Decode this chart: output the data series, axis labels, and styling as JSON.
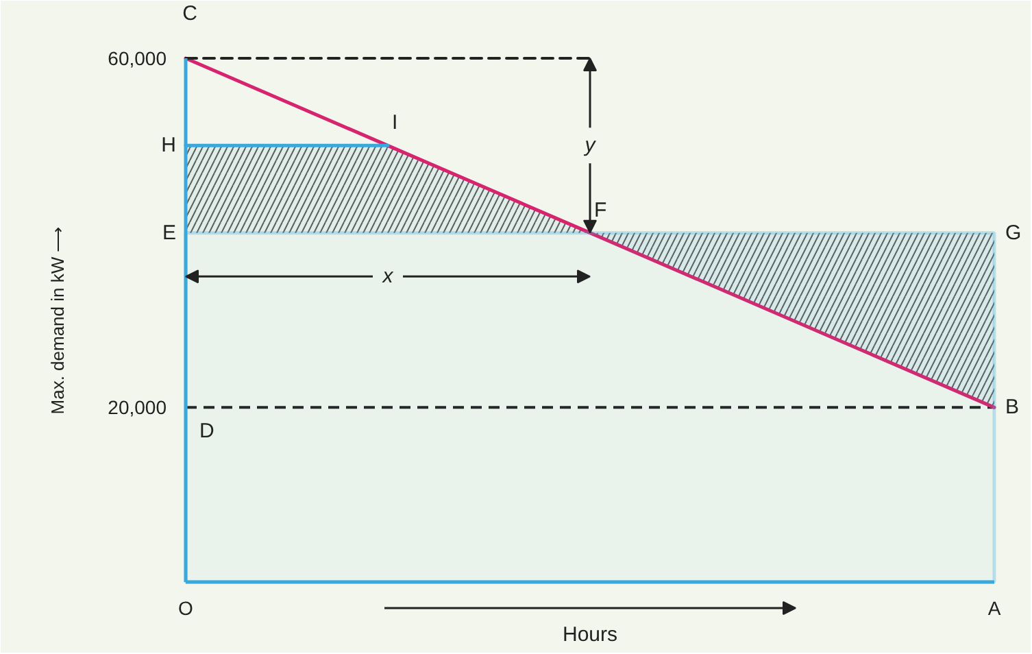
{
  "chart_data": {
    "type": "line",
    "xlabel": "Hours",
    "ylabel": "Max. demand in kW ⟶",
    "categories": [
      "O",
      null,
      null,
      null,
      "A"
    ],
    "ylim": [
      0,
      60000
    ],
    "yticks": [
      {
        "value": 20000,
        "label": "20,000"
      },
      {
        "value": 60000,
        "label": "60,000"
      }
    ],
    "series": [
      {
        "color": "#d6246e",
        "values": [
          60000,
          50000,
          40000,
          30000,
          20000
        ],
        "lower": [
          40000,
          40000,
          40000,
          30000,
          20000
        ],
        "upper": [
          50000,
          50000,
          40000,
          40000,
          40000
        ],
        "value_labels": [
          "C",
          "I",
          "F",
          null,
          "B"
        ]
      },
      {
        "color": "#3aa8dc",
        "values": [
          50000,
          50000,
          null,
          null,
          null
        ],
        "value_labels": [
          "H",
          null,
          null,
          null,
          null
        ]
      },
      {
        "color": "#222222",
        "line_style": "dashed",
        "values": [
          60000,
          60000,
          60000,
          null,
          null
        ]
      }
    ],
    "bands": [
      {
        "axis": "y",
        "from": 0,
        "to": 40000,
        "color": "#3aa8dc"
      }
    ],
    "ref_lines": [
      {
        "axis": "y",
        "value": 20000,
        "label": "D",
        "color": "#222222",
        "line_style": "dashed"
      }
    ],
    "annotations": [
      {
        "text": "E",
        "x": "O",
        "y": 40000
      },
      {
        "text": "G",
        "x": "A",
        "y": 40000
      },
      {
        "text": "x",
        "x": "O",
        "y": 35000
      },
      {
        "text": "y",
        "y": 40000
      }
    ]
  }
}
